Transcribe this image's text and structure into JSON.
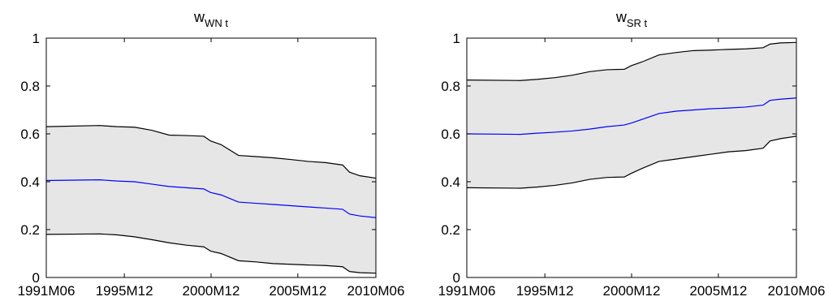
{
  "chart_data": [
    {
      "type": "area",
      "title": {
        "base": "w",
        "subscript": "WN t"
      },
      "xlabel": "",
      "ylabel": "",
      "x_ticks": [
        "1991M06",
        "1995M12",
        "2000M12",
        "2005M12",
        "2010M06"
      ],
      "x_tick_positions": [
        1991.42,
        1995.92,
        2000.92,
        2005.92,
        2010.42
      ],
      "xlim": [
        1991.42,
        2010.42
      ],
      "ylim": [
        0,
        1
      ],
      "y_ticks": [
        "0",
        "0.2",
        "0.4",
        "0.6",
        "0.8",
        "1"
      ],
      "band_fill_color": "#e6e6e6",
      "bound_line_color": "#000000",
      "median_line_color": "#0000ff",
      "series": [
        {
          "x": [
            1991.42,
            1994.5,
            1995.5,
            1996.5,
            1997.5,
            1998.5,
            1999.5,
            2000.5,
            2000.9,
            2001.5,
            2002.5,
            2003.5,
            2004.5,
            2005.5,
            2006.5,
            2007.5,
            2008.5,
            2008.9,
            2009.5,
            2010.42
          ],
          "values": [
            0.63,
            0.635,
            0.63,
            0.628,
            0.615,
            0.595,
            0.593,
            0.59,
            0.57,
            0.555,
            0.51,
            0.505,
            0.5,
            0.493,
            0.485,
            0.48,
            0.47,
            0.44,
            0.425,
            0.415
          ]
        },
        {
          "x": [
            1991.42,
            1994.5,
            1995.5,
            1996.5,
            1997.5,
            1998.5,
            1999.5,
            2000.5,
            2000.9,
            2001.5,
            2002.5,
            2003.5,
            2004.5,
            2005.5,
            2006.5,
            2007.5,
            2008.5,
            2008.9,
            2009.5,
            2010.42
          ],
          "values": [
            0.405,
            0.408,
            0.403,
            0.4,
            0.39,
            0.38,
            0.375,
            0.37,
            0.355,
            0.345,
            0.315,
            0.31,
            0.305,
            0.3,
            0.295,
            0.29,
            0.285,
            0.265,
            0.257,
            0.25
          ]
        },
        {
          "x": [
            1991.42,
            1994.5,
            1995.5,
            1996.5,
            1997.5,
            1998.5,
            1999.5,
            2000.5,
            2000.9,
            2001.5,
            2002.5,
            2003.5,
            2004.5,
            2005.5,
            2006.5,
            2007.5,
            2008.5,
            2008.9,
            2009.5,
            2010.42
          ],
          "values": [
            0.18,
            0.182,
            0.178,
            0.17,
            0.158,
            0.145,
            0.135,
            0.128,
            0.11,
            0.1,
            0.07,
            0.065,
            0.058,
            0.055,
            0.052,
            0.05,
            0.045,
            0.025,
            0.02,
            0.018
          ]
        }
      ]
    },
    {
      "type": "area",
      "title": {
        "base": "w",
        "subscript": "SR t"
      },
      "xlabel": "",
      "ylabel": "",
      "x_ticks": [
        "1991M06",
        "1995M12",
        "2000M12",
        "2005M12",
        "2010M06"
      ],
      "x_tick_positions": [
        1991.42,
        1995.92,
        2000.92,
        2005.92,
        2010.42
      ],
      "xlim": [
        1991.42,
        2010.42
      ],
      "ylim": [
        0,
        1
      ],
      "y_ticks": [
        "0",
        "0.2",
        "0.4",
        "0.6",
        "0.8",
        "1"
      ],
      "band_fill_color": "#e6e6e6",
      "bound_line_color": "#000000",
      "median_line_color": "#0000ff",
      "series": [
        {
          "x": [
            1991.42,
            1994.5,
            1995.5,
            1996.5,
            1997.5,
            1998.5,
            1999.5,
            2000.5,
            2000.9,
            2001.5,
            2002.5,
            2003.5,
            2004.5,
            2005.5,
            2006.5,
            2007.5,
            2008.5,
            2008.9,
            2009.5,
            2010.42
          ],
          "values": [
            0.825,
            0.823,
            0.828,
            0.835,
            0.845,
            0.86,
            0.868,
            0.87,
            0.885,
            0.9,
            0.93,
            0.94,
            0.948,
            0.95,
            0.953,
            0.955,
            0.96,
            0.975,
            0.98,
            0.982
          ]
        },
        {
          "x": [
            1991.42,
            1994.5,
            1995.5,
            1996.5,
            1997.5,
            1998.5,
            1999.5,
            2000.5,
            2000.9,
            2001.5,
            2002.5,
            2003.5,
            2004.5,
            2005.5,
            2006.5,
            2007.5,
            2008.5,
            2008.9,
            2009.5,
            2010.42
          ],
          "values": [
            0.6,
            0.598,
            0.603,
            0.607,
            0.612,
            0.62,
            0.63,
            0.637,
            0.645,
            0.66,
            0.685,
            0.695,
            0.7,
            0.705,
            0.708,
            0.712,
            0.72,
            0.74,
            0.745,
            0.75
          ]
        },
        {
          "x": [
            1991.42,
            1994.5,
            1995.5,
            1996.5,
            1997.5,
            1998.5,
            1999.5,
            2000.5,
            2000.9,
            2001.5,
            2002.5,
            2003.5,
            2004.5,
            2005.5,
            2006.5,
            2007.5,
            2008.5,
            2008.9,
            2009.5,
            2010.42
          ],
          "values": [
            0.375,
            0.373,
            0.378,
            0.385,
            0.395,
            0.41,
            0.418,
            0.42,
            0.435,
            0.455,
            0.485,
            0.495,
            0.505,
            0.515,
            0.525,
            0.53,
            0.54,
            0.57,
            0.58,
            0.59
          ]
        }
      ]
    }
  ]
}
